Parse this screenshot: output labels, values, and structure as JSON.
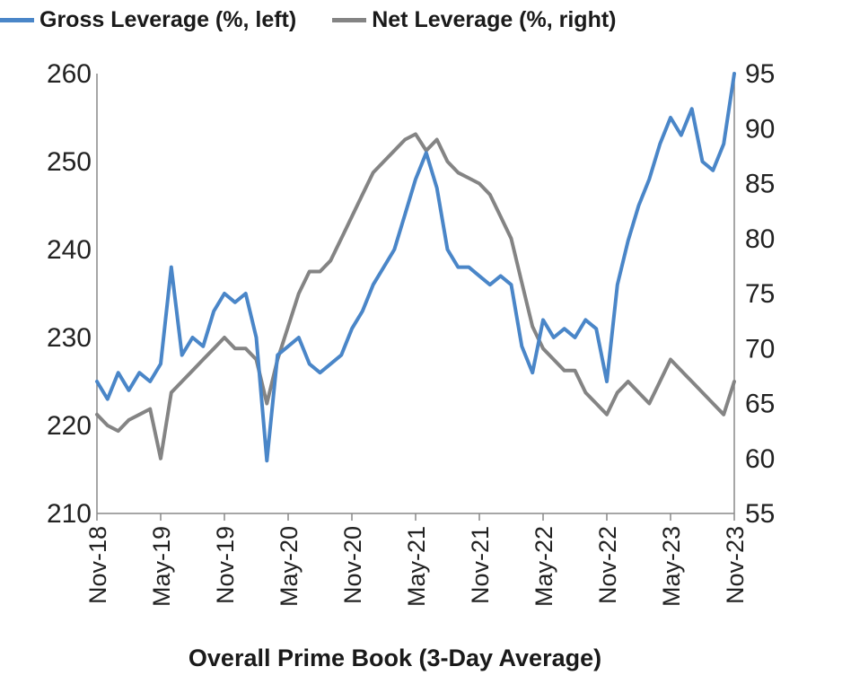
{
  "chart_data": {
    "type": "line",
    "title": "Overall Prime Book (3-Day Average)",
    "legend_position": "top",
    "grid": false,
    "x_ticks": [
      "Nov-18",
      "May-19",
      "Nov-19",
      "May-20",
      "Nov-20",
      "May-21",
      "Nov-21",
      "May-22",
      "Nov-22",
      "May-23",
      "Nov-23"
    ],
    "y_left": {
      "min": 210,
      "max": 260,
      "ticks": [
        "210",
        "220",
        "230",
        "240",
        "250",
        "260"
      ]
    },
    "y_right": {
      "min": 55,
      "max": 95,
      "ticks": [
        "55",
        "60",
        "65",
        "70",
        "75",
        "80",
        "85",
        "90",
        "95"
      ]
    },
    "series": [
      {
        "name": "Gross Leverage (%, left)",
        "axis": "left",
        "color": "#4a86c8",
        "points": [
          [
            "2018-11",
            225
          ],
          [
            "2018-12",
            223
          ],
          [
            "2019-01",
            226
          ],
          [
            "2019-02",
            224
          ],
          [
            "2019-03",
            226
          ],
          [
            "2019-04",
            225
          ],
          [
            "2019-05",
            227
          ],
          [
            "2019-06",
            238
          ],
          [
            "2019-07",
            228
          ],
          [
            "2019-08",
            230
          ],
          [
            "2019-09",
            229
          ],
          [
            "2019-10",
            233
          ],
          [
            "2019-11",
            235
          ],
          [
            "2019-12",
            234
          ],
          [
            "2020-01",
            235
          ],
          [
            "2020-02",
            230
          ],
          [
            "2020-03",
            216
          ],
          [
            "2020-04",
            228
          ],
          [
            "2020-05",
            229
          ],
          [
            "2020-06",
            230
          ],
          [
            "2020-07",
            227
          ],
          [
            "2020-08",
            226
          ],
          [
            "2020-09",
            227
          ],
          [
            "2020-10",
            228
          ],
          [
            "2020-11",
            231
          ],
          [
            "2020-12",
            233
          ],
          [
            "2021-01",
            236
          ],
          [
            "2021-02",
            238
          ],
          [
            "2021-03",
            240
          ],
          [
            "2021-04",
            244
          ],
          [
            "2021-05",
            248
          ],
          [
            "2021-06",
            251
          ],
          [
            "2021-07",
            247
          ],
          [
            "2021-08",
            240
          ],
          [
            "2021-09",
            238
          ],
          [
            "2021-10",
            238
          ],
          [
            "2021-11",
            237
          ],
          [
            "2021-12",
            236
          ],
          [
            "2022-01",
            237
          ],
          [
            "2022-02",
            236
          ],
          [
            "2022-03",
            229
          ],
          [
            "2022-04",
            226
          ],
          [
            "2022-05",
            232
          ],
          [
            "2022-06",
            230
          ],
          [
            "2022-07",
            231
          ],
          [
            "2022-08",
            230
          ],
          [
            "2022-09",
            232
          ],
          [
            "2022-10",
            231
          ],
          [
            "2022-11",
            225
          ],
          [
            "2022-12",
            236
          ],
          [
            "2023-01",
            241
          ],
          [
            "2023-02",
            245
          ],
          [
            "2023-03",
            248
          ],
          [
            "2023-04",
            252
          ],
          [
            "2023-05",
            255
          ],
          [
            "2023-06",
            253
          ],
          [
            "2023-07",
            256
          ],
          [
            "2023-08",
            250
          ],
          [
            "2023-09",
            249
          ],
          [
            "2023-10",
            252
          ],
          [
            "2023-11",
            260
          ]
        ]
      },
      {
        "name": "Net Leverage (%, right)",
        "axis": "right",
        "color": "#848484",
        "points": [
          [
            "2018-11",
            64
          ],
          [
            "2018-12",
            63
          ],
          [
            "2019-01",
            62.5
          ],
          [
            "2019-02",
            63.5
          ],
          [
            "2019-03",
            64
          ],
          [
            "2019-04",
            64.5
          ],
          [
            "2019-05",
            60
          ],
          [
            "2019-06",
            66
          ],
          [
            "2019-07",
            67
          ],
          [
            "2019-08",
            68
          ],
          [
            "2019-09",
            69
          ],
          [
            "2019-10",
            70
          ],
          [
            "2019-11",
            71
          ],
          [
            "2019-12",
            70
          ],
          [
            "2020-01",
            70
          ],
          [
            "2020-02",
            69
          ],
          [
            "2020-03",
            65
          ],
          [
            "2020-04",
            69
          ],
          [
            "2020-05",
            72
          ],
          [
            "2020-06",
            75
          ],
          [
            "2020-07",
            77
          ],
          [
            "2020-08",
            77
          ],
          [
            "2020-09",
            78
          ],
          [
            "2020-10",
            80
          ],
          [
            "2020-11",
            82
          ],
          [
            "2020-12",
            84
          ],
          [
            "2021-01",
            86
          ],
          [
            "2021-02",
            87
          ],
          [
            "2021-03",
            88
          ],
          [
            "2021-04",
            89
          ],
          [
            "2021-05",
            89.5
          ],
          [
            "2021-06",
            88
          ],
          [
            "2021-07",
            89
          ],
          [
            "2021-08",
            87
          ],
          [
            "2021-09",
            86
          ],
          [
            "2021-10",
            85.5
          ],
          [
            "2021-11",
            85
          ],
          [
            "2021-12",
            84
          ],
          [
            "2022-01",
            82
          ],
          [
            "2022-02",
            80
          ],
          [
            "2022-03",
            76
          ],
          [
            "2022-04",
            72
          ],
          [
            "2022-05",
            70
          ],
          [
            "2022-06",
            69
          ],
          [
            "2022-07",
            68
          ],
          [
            "2022-08",
            68
          ],
          [
            "2022-09",
            66
          ],
          [
            "2022-10",
            65
          ],
          [
            "2022-11",
            64
          ],
          [
            "2022-12",
            66
          ],
          [
            "2023-01",
            67
          ],
          [
            "2023-02",
            66
          ],
          [
            "2023-03",
            65
          ],
          [
            "2023-04",
            67
          ],
          [
            "2023-05",
            69
          ],
          [
            "2023-06",
            68
          ],
          [
            "2023-07",
            67
          ],
          [
            "2023-08",
            66
          ],
          [
            "2023-09",
            65
          ],
          [
            "2023-10",
            64
          ],
          [
            "2023-11",
            67
          ]
        ]
      }
    ]
  }
}
